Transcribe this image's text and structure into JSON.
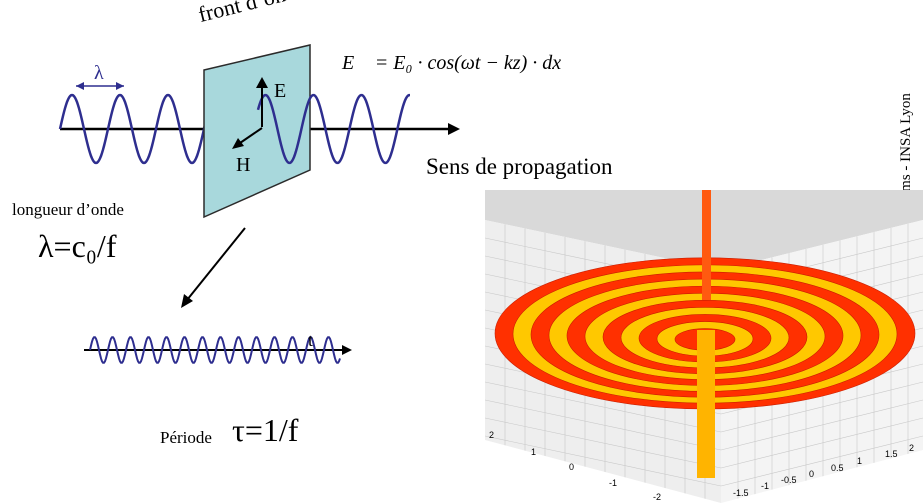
{
  "labels": {
    "wavefront": "front d’onde",
    "lambda": "λ",
    "e_field": "E",
    "h_field": "H",
    "equation": "E⃗ = E₀ · cos(ωt − kz) · dx⃗",
    "propagation": "Sens de propagation",
    "wavelength_caption": "longueur d’onde",
    "wavelength_formula": "λ=c₀/f",
    "time_axis": "t",
    "period_caption": "Période",
    "period_formula": "τ=1/f",
    "side_note": "coms - INSA Lyon"
  },
  "plot_ticks": {
    "left": [
      "2",
      "1",
      "0",
      "-1",
      "-2"
    ],
    "bottom": [
      "-1.5",
      "-1",
      "-0.5",
      "0",
      "0.5",
      "1",
      "1.5",
      "2"
    ]
  },
  "colors": {
    "wave": "#2e2e8f",
    "wavefront_fill": "#a8d8dc",
    "surface_hot": "#ff3000",
    "surface_warm": "#ffc800"
  }
}
